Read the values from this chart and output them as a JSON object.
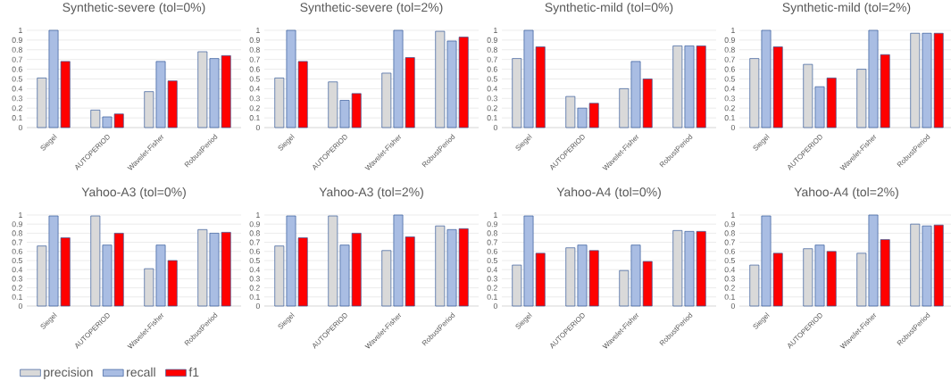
{
  "chart_data": [
    {
      "type": "bar",
      "title": "Synthetic-severe (tol=0%)",
      "categories": [
        "Siegel",
        "AUTOPERIOD",
        "Wavelet-Fisher",
        "RobustPeriod"
      ],
      "ylim": [
        0,
        1
      ],
      "yticks": [
        0,
        0.1,
        0.2,
        0.3,
        0.4,
        0.5,
        0.6,
        0.7,
        0.8,
        0.9,
        1
      ],
      "grid": "y",
      "series": [
        {
          "color": "#d9d9d9",
          "values": [
            0.51,
            0.18,
            0.37,
            0.78
          ]
        },
        {
          "color": "#a9bde3",
          "values": [
            1,
            0.11,
            0.68,
            0.71
          ]
        },
        {
          "color": "#ff0000",
          "values": [
            0.68,
            0.14,
            0.48,
            0.74
          ]
        }
      ]
    },
    {
      "type": "bar",
      "title": "Synthetic-severe (tol=2%)",
      "categories": [
        "Siegel",
        "AUTOPERIOD",
        "Wavelet-Fisher",
        "RobustPeriod"
      ],
      "ylim": [
        0,
        1
      ],
      "yticks": [
        0,
        0.1,
        0.2,
        0.3,
        0.4,
        0.5,
        0.6,
        0.7,
        0.8,
        0.9,
        1
      ],
      "grid": "y",
      "series": [
        {
          "color": "#d9d9d9",
          "values": [
            0.51,
            0.47,
            0.56,
            0.99
          ]
        },
        {
          "color": "#a9bde3",
          "values": [
            1,
            0.28,
            1,
            0.89
          ]
        },
        {
          "color": "#ff0000",
          "values": [
            0.68,
            0.35,
            0.72,
            0.93
          ]
        }
      ]
    },
    {
      "type": "bar",
      "title": "Synthetic-mild (tol=0%)",
      "categories": [
        "Siegel",
        "AUTOPERIOD",
        "Wavelet-Fisher",
        "RobustPeriod"
      ],
      "ylim": [
        0,
        1
      ],
      "yticks": [
        0,
        0.1,
        0.2,
        0.3,
        0.4,
        0.5,
        0.6,
        0.7,
        0.8,
        0.9,
        1
      ],
      "grid": "y",
      "series": [
        {
          "color": "#d9d9d9",
          "values": [
            0.71,
            0.32,
            0.4,
            0.84
          ]
        },
        {
          "color": "#a9bde3",
          "values": [
            1,
            0.2,
            0.68,
            0.84
          ]
        },
        {
          "color": "#ff0000",
          "values": [
            0.83,
            0.25,
            0.5,
            0.84
          ]
        }
      ]
    },
    {
      "type": "bar",
      "title": "Synthetic-mild (tol=2%)",
      "categories": [
        "Siegel",
        "AUTOPERIOD",
        "Wavelet-Fisher",
        "RobustPeriod"
      ],
      "ylim": [
        0,
        1
      ],
      "yticks": [
        0,
        0.1,
        0.2,
        0.3,
        0.4,
        0.5,
        0.6,
        0.7,
        0.8,
        0.9,
        1
      ],
      "grid": "y",
      "series": [
        {
          "color": "#d9d9d9",
          "values": [
            0.71,
            0.65,
            0.6,
            0.97
          ]
        },
        {
          "color": "#a9bde3",
          "values": [
            1,
            0.42,
            1,
            0.97
          ]
        },
        {
          "color": "#ff0000",
          "values": [
            0.83,
            0.51,
            0.75,
            0.97
          ]
        }
      ]
    },
    {
      "type": "bar",
      "title": "Yahoo-A3 (tol=0%)",
      "categories": [
        "Siegel",
        "AUTOPERIOD",
        "Wavelet-Fisher",
        "RobustPeriod"
      ],
      "ylim": [
        0,
        1
      ],
      "yticks": [
        0,
        0.1,
        0.2,
        0.3,
        0.4,
        0.5,
        0.6,
        0.7,
        0.8,
        0.9,
        1
      ],
      "grid": "y",
      "legend": "bottom left",
      "series": [
        {
          "name": "precision",
          "color": "#d9d9d9",
          "values": [
            0.66,
            0.99,
            0.41,
            0.84
          ]
        },
        {
          "name": "recall",
          "color": "#a9bde3",
          "values": [
            0.99,
            0.67,
            0.67,
            0.8
          ]
        },
        {
          "name": "f1",
          "color": "#ff0000",
          "values": [
            0.75,
            0.8,
            0.5,
            0.81
          ]
        }
      ]
    },
    {
      "type": "bar",
      "title": "Yahoo-A3 (tol=2%)",
      "categories": [
        "Siegel",
        "AUTOPERIOD",
        "Wavelet-Fisher",
        "RobustPeriod"
      ],
      "ylim": [
        0,
        1
      ],
      "yticks": [
        0,
        0.1,
        0.2,
        0.3,
        0.4,
        0.5,
        0.6,
        0.7,
        0.8,
        0.9,
        1
      ],
      "grid": "y",
      "series": [
        {
          "color": "#d9d9d9",
          "values": [
            0.66,
            0.99,
            0.61,
            0.88
          ]
        },
        {
          "color": "#a9bde3",
          "values": [
            0.99,
            0.67,
            1,
            0.84
          ]
        },
        {
          "color": "#ff0000",
          "values": [
            0.75,
            0.8,
            0.76,
            0.85
          ]
        }
      ]
    },
    {
      "type": "bar",
      "title": "Yahoo-A4 (tol=0%)",
      "categories": [
        "Siegel",
        "AUTOPERIOD",
        "Wavelet-Fisher",
        "RobustPeriod"
      ],
      "ylim": [
        0,
        1
      ],
      "yticks": [
        0,
        0.1,
        0.2,
        0.3,
        0.4,
        0.5,
        0.6,
        0.7,
        0.8,
        0.9,
        1
      ],
      "grid": "y",
      "series": [
        {
          "color": "#d9d9d9",
          "values": [
            0.45,
            0.64,
            0.39,
            0.83
          ]
        },
        {
          "color": "#a9bde3",
          "values": [
            0.99,
            0.67,
            0.67,
            0.82
          ]
        },
        {
          "color": "#ff0000",
          "values": [
            0.58,
            0.61,
            0.49,
            0.82
          ]
        }
      ]
    },
    {
      "type": "bar",
      "title": "Yahoo-A4 (tol=2%)",
      "categories": [
        "Siegel",
        "AUTOPERIOD",
        "Wavelet-Fisher",
        "RobustPeriod"
      ],
      "ylim": [
        0,
        1
      ],
      "yticks": [
        0,
        0.1,
        0.2,
        0.3,
        0.4,
        0.5,
        0.6,
        0.7,
        0.8,
        0.9,
        1
      ],
      "grid": "y",
      "series": [
        {
          "color": "#d9d9d9",
          "values": [
            0.45,
            0.63,
            0.58,
            0.9
          ]
        },
        {
          "color": "#a9bde3",
          "values": [
            0.99,
            0.67,
            1,
            0.88
          ]
        },
        {
          "color": "#ff0000",
          "values": [
            0.58,
            0.6,
            0.73,
            0.89
          ]
        }
      ]
    }
  ]
}
